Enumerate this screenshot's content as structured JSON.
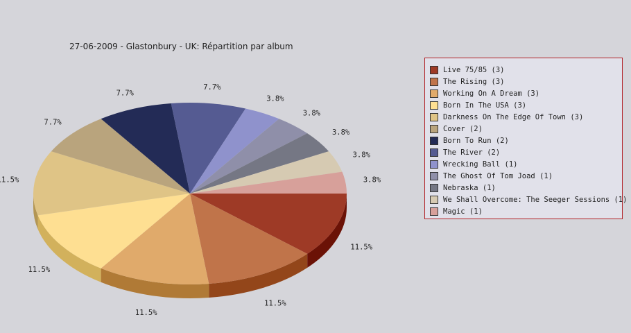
{
  "chart_data": {
    "type": "pie",
    "title": "27-06-2009 - Glastonbury - UK:  Répartition par album",
    "legend_position": "right",
    "slices": [
      {
        "label": "Live 75/85 (3)",
        "value": 3,
        "pct_label": "11.5%",
        "color": "#9e3a26",
        "side": "#6b1206"
      },
      {
        "label": "The Rising (3)",
        "value": 3,
        "pct_label": "11.5%",
        "color": "#c0744a",
        "side": "#93461a"
      },
      {
        "label": "Working On A Dream (3)",
        "value": 3,
        "pct_label": "11.5%",
        "color": "#e0aa6b",
        "side": "#b07a36"
      },
      {
        "label": "Born In The USA (3)",
        "value": 3,
        "pct_label": "11.5%",
        "color": "#fedf92",
        "side": "#d2b15c"
      },
      {
        "label": "Darkness On The Edge Of Town (3)",
        "value": 3,
        "pct_label": "11.5%",
        "color": "#dfc486",
        "side": "#b39654"
      },
      {
        "label": "Cover (2)",
        "value": 2,
        "pct_label": "7.7%",
        "color": "#b9a47d",
        "side": "#8c784f"
      },
      {
        "label": "Born To Run (2)",
        "value": 2,
        "pct_label": "7.7%",
        "color": "#232b56",
        "side": "#10163a"
      },
      {
        "label": "The River (2)",
        "value": 2,
        "pct_label": "7.7%",
        "color": "#555b92",
        "side": "#353a6a"
      },
      {
        "label": "Wrecking Ball (1)",
        "value": 1,
        "pct_label": "3.8%",
        "color": "#8f92cc",
        "side": "#6a6da6"
      },
      {
        "label": "The Ghost Of Tom Joad (1)",
        "value": 1,
        "pct_label": "3.8%",
        "color": "#8f8fa9",
        "side": "#6a6a84"
      },
      {
        "label": "Nebraska (1)",
        "value": 1,
        "pct_label": "3.8%",
        "color": "#757784",
        "side": "#52535e"
      },
      {
        "label": "We Shall Overcome: The Seeger Sessions (1)",
        "value": 1,
        "pct_label": "3.8%",
        "color": "#d6cab2",
        "side": "#b0a48c"
      },
      {
        "label": "Magic (1)",
        "value": 1,
        "pct_label": "3.8%",
        "color": "#d7a09a",
        "side": "#b07a74"
      }
    ]
  }
}
